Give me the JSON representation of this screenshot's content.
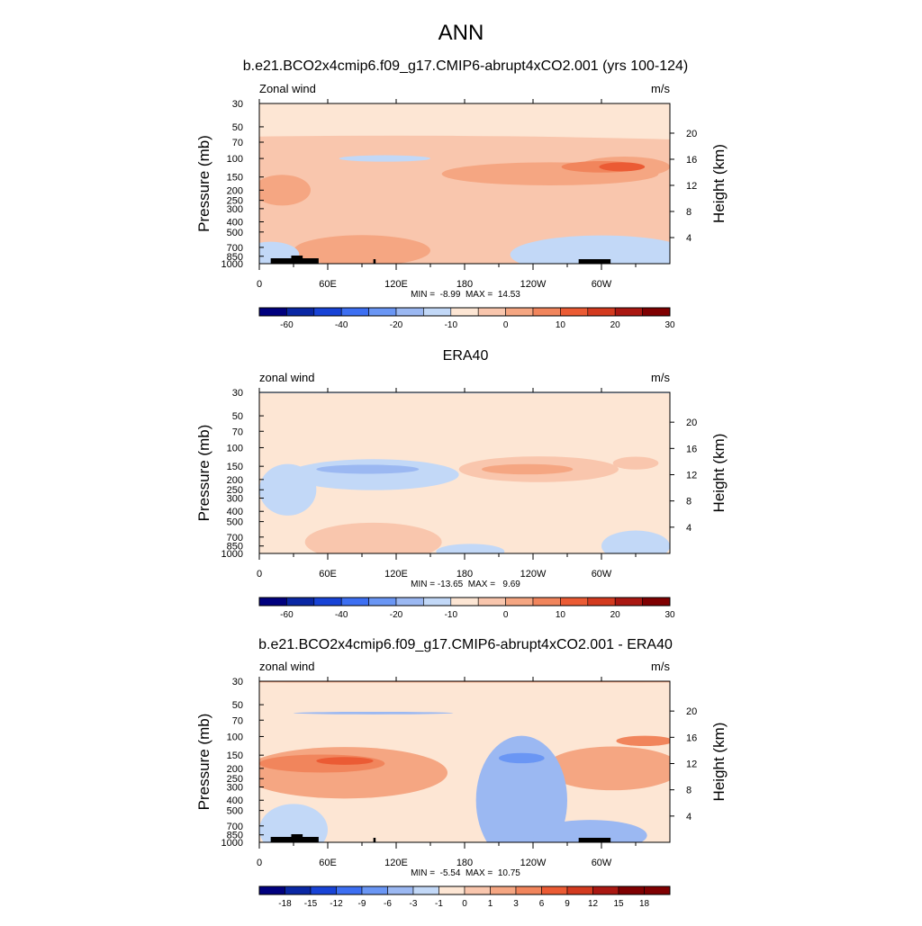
{
  "page_title": "ANN",
  "chart_data": [
    {
      "type": "heatmap",
      "title": "b.e21.BCO2x4cmip6.f09_g17.CMIP6-abrupt4xCO2.001 (yrs 100-124)",
      "corner_left": "Zonal wind",
      "corner_right": "m/s",
      "ylabel": "Pressure (mb)",
      "ylabel_right": "Height (km)",
      "xticks": [
        "0",
        "60E",
        "120E",
        "180",
        "120W",
        "60W"
      ],
      "yticks": [
        "30",
        "50",
        "70",
        "100",
        "150",
        "200",
        "250",
        "300",
        "400",
        "500",
        "700",
        "850",
        "1000"
      ],
      "height_ticks": [
        "20",
        "16",
        "12",
        "8",
        "4"
      ],
      "ylim": [
        1000,
        30
      ],
      "x_range": [
        0,
        360
      ],
      "stats": "MIN =  -8.99  MAX =  14.53",
      "colorbar_labels": [
        "-60",
        "-40",
        "-20",
        "-10",
        "0",
        "10",
        "20",
        "30"
      ],
      "colors": [
        "#00007e",
        "#0a27a4",
        "#1843d6",
        "#3d6ff2",
        "#6a96f4",
        "#9bb8f2",
        "#c2d8f7",
        "#fde6d4",
        "#f9c6ad",
        "#f5a682",
        "#f1855c",
        "#eb5b34",
        "#d33a1f",
        "#aa1812",
        "#7f0001"
      ],
      "anomalies": [
        {
          "type": "pos",
          "level": 1,
          "x": 120,
          "y": 1000,
          "rx": 999,
          "ry": 999
        },
        {
          "type": "pos",
          "level": 2,
          "x": 255,
          "y": 140,
          "rx": 95,
          "ry": 90
        },
        {
          "type": "pos",
          "level": 2,
          "x": 320,
          "y": 120,
          "rx": 40,
          "ry": 80
        },
        {
          "type": "pos",
          "level": 3,
          "x": 300,
          "y": 120,
          "rx": 35,
          "ry": 45
        },
        {
          "type": "pos",
          "level": 4,
          "x": 318,
          "y": 120,
          "rx": 20,
          "ry": 35
        },
        {
          "type": "pos",
          "level": 2,
          "x": 20,
          "y": 200,
          "rx": 25,
          "ry": 120
        },
        {
          "type": "pos",
          "level": 2,
          "x": 90,
          "y": 750,
          "rx": 60,
          "ry": 120
        },
        {
          "type": "neg",
          "level": 1,
          "x": 110,
          "y": 100,
          "rx": 40,
          "ry": 25
        },
        {
          "type": "neg",
          "level": 1,
          "x": 300,
          "y": 820,
          "rx": 80,
          "ry": 150
        },
        {
          "type": "neg",
          "level": 1,
          "x": 10,
          "y": 820,
          "rx": 25,
          "ry": 100
        }
      ]
    },
    {
      "type": "heatmap",
      "title": "ERA40",
      "corner_left": "zonal wind",
      "corner_right": "m/s",
      "ylabel": "Pressure (mb)",
      "ylabel_right": "Height (km)",
      "xticks": [
        "0",
        "60E",
        "120E",
        "180",
        "120W",
        "60W"
      ],
      "yticks": [
        "30",
        "50",
        "70",
        "100",
        "150",
        "200",
        "250",
        "300",
        "400",
        "500",
        "700",
        "850",
        "1000"
      ],
      "height_ticks": [
        "20",
        "16",
        "12",
        "8",
        "4"
      ],
      "ylim": [
        1000,
        30
      ],
      "x_range": [
        0,
        360
      ],
      "stats": "MIN = -13.65  MAX =   9.69",
      "colorbar_labels": [
        "-60",
        "-40",
        "-20",
        "-10",
        "0",
        "10",
        "20",
        "30"
      ],
      "colors": [
        "#00007e",
        "#0a27a4",
        "#1843d6",
        "#3d6ff2",
        "#6a96f4",
        "#9bb8f2",
        "#c2d8f7",
        "#fde6d4",
        "#f9c6ad",
        "#f5a682",
        "#f1855c",
        "#eb5b34",
        "#d33a1f",
        "#aa1812",
        "#7f0001"
      ],
      "anomalies": [
        {
          "type": "pos",
          "level": 1,
          "x": 245,
          "y": 160,
          "rx": 70,
          "ry": 100
        },
        {
          "type": "pos",
          "level": 2,
          "x": 235,
          "y": 160,
          "rx": 40,
          "ry": 40
        },
        {
          "type": "pos",
          "level": 1,
          "x": 330,
          "y": 140,
          "rx": 20,
          "ry": 50
        },
        {
          "type": "pos",
          "level": 1,
          "x": 100,
          "y": 780,
          "rx": 60,
          "ry": 150
        },
        {
          "type": "neg",
          "level": 1,
          "x": 100,
          "y": 180,
          "rx": 75,
          "ry": 120
        },
        {
          "type": "neg",
          "level": 2,
          "x": 95,
          "y": 160,
          "rx": 45,
          "ry": 35
        },
        {
          "type": "neg",
          "level": 1,
          "x": 25,
          "y": 250,
          "rx": 25,
          "ry": 200
        },
        {
          "type": "neg",
          "level": 1,
          "x": 185,
          "y": 960,
          "rx": 30,
          "ry": 60
        },
        {
          "type": "neg",
          "level": 1,
          "x": 330,
          "y": 850,
          "rx": 30,
          "ry": 120
        },
        {
          "type": "neg",
          "level": 1,
          "x": 180,
          "y": 30,
          "rx": 400,
          "ry": 8
        }
      ]
    },
    {
      "type": "heatmap",
      "title": "b.e21.BCO2x4cmip6.f09_g17.CMIP6-abrupt4xCO2.001 - ERA40",
      "corner_left": "zonal wind",
      "corner_right": "m/s",
      "ylabel": "Pressure (mb)",
      "ylabel_right": "Height (km)",
      "xticks": [
        "0",
        "60E",
        "120E",
        "180",
        "120W",
        "60W"
      ],
      "yticks": [
        "30",
        "50",
        "70",
        "100",
        "150",
        "200",
        "250",
        "300",
        "400",
        "500",
        "700",
        "850",
        "1000"
      ],
      "height_ticks": [
        "20",
        "16",
        "12",
        "8",
        "4"
      ],
      "ylim": [
        1000,
        30
      ],
      "x_range": [
        0,
        360
      ],
      "stats": "MIN =  -5.54  MAX =  10.75",
      "colorbar_labels": [
        "-18",
        "-15",
        "-12",
        "-9",
        "-6",
        "-3",
        "-1",
        "0",
        "1",
        "3",
        "6",
        "9",
        "12",
        "15",
        "18"
      ],
      "colors": [
        "#00007e",
        "#0a27a4",
        "#1843d6",
        "#3d6ff2",
        "#6a96f4",
        "#9bb8f2",
        "#c2d8f7",
        "#fde6d4",
        "#f9c6ad",
        "#f5a682",
        "#f1855c",
        "#eb5b34",
        "#d33a1f",
        "#aa1812",
        "#7f0001",
        "#7f0001"
      ],
      "anomalies": [
        {
          "type": "pos",
          "level": 2,
          "x": 180,
          "y": 30,
          "rx": 400,
          "ry": 10
        },
        {
          "type": "pos",
          "level": 2,
          "x": 75,
          "y": 220,
          "rx": 90,
          "ry": 200
        },
        {
          "type": "pos",
          "level": 3,
          "x": 55,
          "y": 180,
          "rx": 55,
          "ry": 70
        },
        {
          "type": "pos",
          "level": 4,
          "x": 75,
          "y": 170,
          "rx": 25,
          "ry": 30
        },
        {
          "type": "pos",
          "level": 2,
          "x": 310,
          "y": 200,
          "rx": 60,
          "ry": 170
        },
        {
          "type": "pos",
          "level": 3,
          "x": 338,
          "y": 110,
          "rx": 25,
          "ry": 40
        },
        {
          "type": "neg",
          "level": 2,
          "x": 230,
          "y": 400,
          "rx": 40,
          "ry": 500
        },
        {
          "type": "neg",
          "level": 3,
          "x": 230,
          "y": 160,
          "rx": 20,
          "ry": 40
        },
        {
          "type": "neg",
          "level": 2,
          "x": 290,
          "y": 860,
          "rx": 50,
          "ry": 120
        },
        {
          "type": "neg",
          "level": 2,
          "x": 100,
          "y": 60,
          "rx": 70,
          "ry": 10
        },
        {
          "type": "neg",
          "level": 1,
          "x": 30,
          "y": 760,
          "rx": 30,
          "ry": 200
        }
      ]
    }
  ]
}
